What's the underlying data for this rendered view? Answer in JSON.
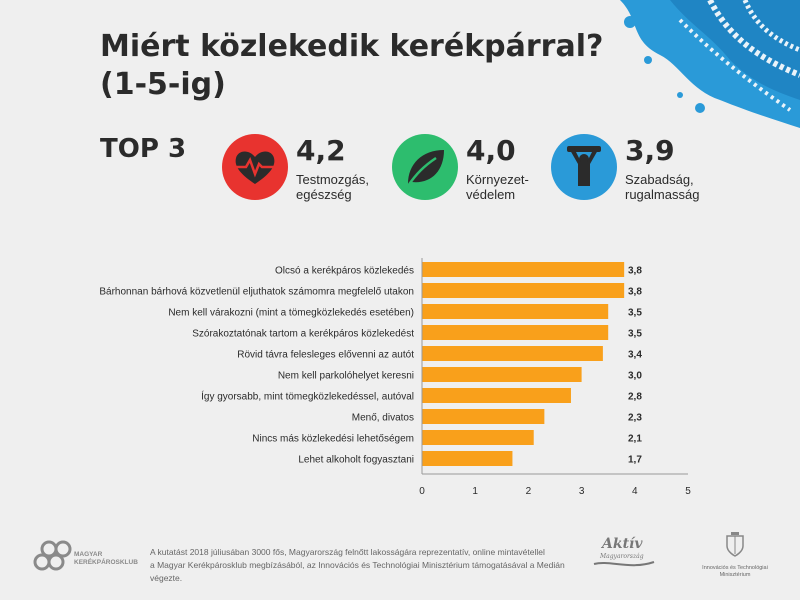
{
  "title_line1": "Miért közlekedik kerékpárral?",
  "title_line2": "(1-5-ig)",
  "top3": {
    "label": "TOP 3",
    "items": [
      {
        "value": "4,2",
        "label_line1": "Testmozgás,",
        "label_line2": "egészség",
        "icon": "heart-pulse-icon",
        "color": "#e8332f"
      },
      {
        "value": "4,0",
        "label_line1": "Környezet-",
        "label_line2": "védelem",
        "icon": "leaf-icon",
        "color": "#2dbd6e"
      },
      {
        "value": "3,9",
        "label_line1": "Szabadság,",
        "label_line2": "rugalmasság",
        "icon": "freedom-person-icon",
        "color": "#2a9ad8"
      }
    ]
  },
  "chart_data": {
    "type": "bar",
    "orientation": "horizontal",
    "categories": [
      "Olcsó a kerékpáros közlekedés",
      "Bárhonnan bárhová közvetlenül eljuthatok számomra megfelelő utakon",
      "Nem kell várakozni (mint a tömegközlekedés esetében)",
      "Szórakoztatónak tartom a kerékpáros közlekedést",
      "Rövid távra felesleges elővenni az autót",
      "Nem kell parkolóhelyet keresni",
      "Így gyorsabb, mint tömegközlekedéssel, autóval",
      "Menő, divatos",
      "Nincs más közlekedési lehetőségem",
      "Lehet alkoholt fogyasztani"
    ],
    "values": [
      3.8,
      3.8,
      3.5,
      3.5,
      3.4,
      3.0,
      2.8,
      2.3,
      2.1,
      1.7
    ],
    "value_labels": [
      "3,8",
      "3,8",
      "3,5",
      "3,5",
      "3,4",
      "3,0",
      "2,8",
      "2,3",
      "2,1",
      "1,7"
    ],
    "xlim": [
      0,
      5
    ],
    "xticks": [
      "0",
      "1",
      "2",
      "3",
      "4",
      "5"
    ],
    "bar_color": "#f9a01b",
    "grid": false
  },
  "footer": {
    "logo_line1": "MAGYAR",
    "logo_line2": "KERÉKPÁROSKLUB",
    "note_line1": "A kutatást 2018 júliusában 3000 fős, Magyarország felnőtt lakosságára reprezentatív, online mintavétellel",
    "note_line2": "a Magyar Kerékpárosklub megbízásából, az Innovációs és Technológiai Minisztérium támogatásával a Medián végezte.",
    "aktiv_line1": "Aktív",
    "aktiv_line2": "Magyarország",
    "ministry_line1": "Innovációs és Technológiai",
    "ministry_line2": "Minisztérium"
  }
}
